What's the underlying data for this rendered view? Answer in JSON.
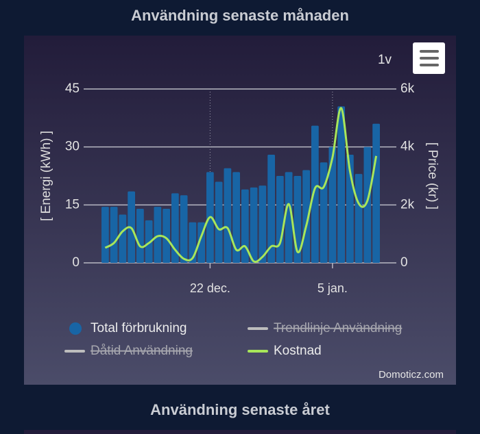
{
  "page": {
    "title": "Användning senaste månaden",
    "next_title": "Användning senaste året",
    "range_button": "1v",
    "credits": "Domoticz.com"
  },
  "chart_data": {
    "type": "bar",
    "y_label": "[ Energi (kWh) ]",
    "y2_label": "[ Price (kr) ]",
    "categories": [
      null,
      null,
      null,
      null,
      null,
      null,
      null,
      null,
      null,
      null,
      null,
      null,
      "22 dec.",
      null,
      null,
      null,
      null,
      null,
      null,
      null,
      null,
      null,
      null,
      null,
      null,
      null,
      "5 jan.",
      null,
      null,
      null,
      null,
      null
    ],
    "ylim": [
      0,
      45
    ],
    "yticks": [
      0,
      15,
      30,
      45
    ],
    "y2lim": [
      0,
      6000
    ],
    "y2ticks": [
      0,
      {
        "value": 2000,
        "label": "2k"
      },
      {
        "value": 4000,
        "label": "4k"
      },
      {
        "value": 6000,
        "label": "6k"
      }
    ],
    "grid": true,
    "series": [
      {
        "name": "Total förbrukning",
        "type": "bar",
        "color": "#1865a5",
        "visible": true,
        "values": [
          14.5,
          14.5,
          12.5,
          18.5,
          14,
          11,
          14.5,
          14,
          18,
          17.5,
          10.5,
          10.5,
          23.5,
          21,
          24.5,
          23.5,
          19,
          19.5,
          20,
          28,
          22.5,
          23.5,
          22.5,
          24,
          35.5,
          26,
          30,
          40.5,
          28,
          23,
          30,
          36
        ]
      },
      {
        "name": "Trendlinje Användning",
        "type": "line",
        "color": "#c8c8c8",
        "visible": false
      },
      {
        "name": "Dåtid Användning",
        "type": "line",
        "color": "#c8c8c8",
        "visible": false
      },
      {
        "name": "Kostnad",
        "type": "line",
        "axis": "y2",
        "color": "#a8e65a",
        "visible": true,
        "values": [
          520,
          685,
          1090,
          1200,
          570,
          685,
          920,
          850,
          450,
          140,
          165,
          920,
          1580,
          1160,
          1200,
          450,
          570,
          50,
          210,
          570,
          685,
          2030,
          380,
          1280,
          2575,
          2620,
          3640,
          5340,
          3170,
          2050,
          2150,
          3690
        ]
      }
    ]
  }
}
